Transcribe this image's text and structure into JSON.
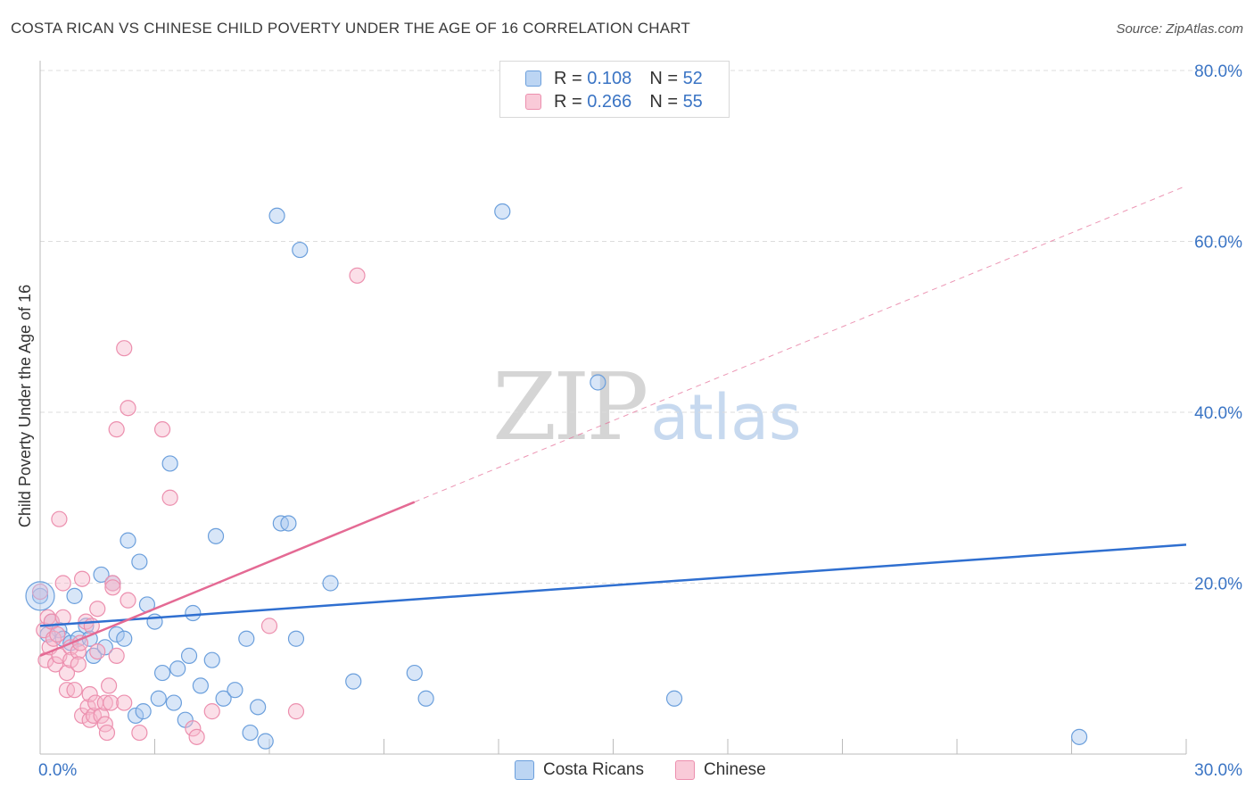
{
  "header": {
    "title": "COSTA RICAN VS CHINESE CHILD POVERTY UNDER THE AGE OF 16 CORRELATION CHART",
    "source": "Source: ZipAtlas.com"
  },
  "legend": {
    "rows": [
      {
        "r_label": "R =",
        "r_value": "0.108",
        "n_label": "N =",
        "n_value": "52"
      },
      {
        "r_label": "R =",
        "r_value": "0.266",
        "n_label": "N =",
        "n_value": "55"
      }
    ]
  },
  "bottom_legend": {
    "costa_ricans": "Costa Ricans",
    "chinese": "Chinese"
  },
  "watermark": {
    "zip": "ZIP",
    "atlas": "atlas"
  },
  "colors": {
    "blue_fill": "#a9c8ef",
    "blue_stroke": "#6b9fdc",
    "blue_line": "#2f6fd0",
    "pink_fill": "#f6b9cc",
    "pink_stroke": "#ec8fae",
    "pink_line": "#e46a94",
    "axis_label": "#3a74c4"
  },
  "chart_data": {
    "type": "scatter",
    "title": "COSTA RICAN VS CHINESE CHILD POVERTY UNDER THE AGE OF 16 CORRELATION CHART",
    "xlabel": "",
    "ylabel": "Child Poverty Under the Age of 16",
    "xlim": [
      0,
      30
    ],
    "ylim": [
      0,
      80
    ],
    "x_tick_labels": [
      "0.0%",
      "30.0%"
    ],
    "y_ticks": [
      20,
      40,
      60,
      80
    ],
    "y_tick_labels": [
      "20.0%",
      "40.0%",
      "60.0%",
      "80.0%"
    ],
    "grid": true,
    "series": [
      {
        "name": "Costa Ricans",
        "R": 0.108,
        "N": 52,
        "trend": {
          "x0": 0,
          "y0": 15.0,
          "x1": 30,
          "y1": 24.5
        },
        "points": [
          [
            0.0,
            18.5
          ],
          [
            0.3,
            15.5
          ],
          [
            0.5,
            14.5
          ],
          [
            0.6,
            13.5
          ],
          [
            0.8,
            13.0
          ],
          [
            0.9,
            18.5
          ],
          [
            1.0,
            13.5
          ],
          [
            1.2,
            15.0
          ],
          [
            1.4,
            11.5
          ],
          [
            1.6,
            21.0
          ],
          [
            1.7,
            12.5
          ],
          [
            1.9,
            20.0
          ],
          [
            2.0,
            14.0
          ],
          [
            2.2,
            13.5
          ],
          [
            2.3,
            25.0
          ],
          [
            2.5,
            4.5
          ],
          [
            2.6,
            22.5
          ],
          [
            2.7,
            5.0
          ],
          [
            2.8,
            17.5
          ],
          [
            3.0,
            15.5
          ],
          [
            3.1,
            6.5
          ],
          [
            3.2,
            9.5
          ],
          [
            3.4,
            34.0
          ],
          [
            3.5,
            6.0
          ],
          [
            3.6,
            10.0
          ],
          [
            3.8,
            4.0
          ],
          [
            3.9,
            11.5
          ],
          [
            4.0,
            16.5
          ],
          [
            4.2,
            8.0
          ],
          [
            4.5,
            11.0
          ],
          [
            4.6,
            25.5
          ],
          [
            4.8,
            6.5
          ],
          [
            5.1,
            7.5
          ],
          [
            5.4,
            13.5
          ],
          [
            5.5,
            2.5
          ],
          [
            5.7,
            5.5
          ],
          [
            5.9,
            1.5
          ],
          [
            6.2,
            63.0
          ],
          [
            6.3,
            27.0
          ],
          [
            6.5,
            27.0
          ],
          [
            6.7,
            13.5
          ],
          [
            6.8,
            59.0
          ],
          [
            7.6,
            20.0
          ],
          [
            8.2,
            8.5
          ],
          [
            9.8,
            9.5
          ],
          [
            10.1,
            6.5
          ],
          [
            12.1,
            63.5
          ],
          [
            14.6,
            43.5
          ],
          [
            16.6,
            6.5
          ],
          [
            27.2,
            2.0
          ],
          [
            0.2,
            14.0
          ],
          [
            1.3,
            13.5
          ]
        ]
      },
      {
        "name": "Chinese",
        "R": 0.266,
        "N": 55,
        "trend": {
          "x0": 0,
          "y0": 11.5,
          "x1": 9.8,
          "y1": 29.5
        },
        "trend_dashed": {
          "x0": 9.8,
          "y0": 29.5,
          "x1": 30,
          "y1": 66.5
        },
        "points": [
          [
            0.0,
            19.0
          ],
          [
            0.1,
            14.5
          ],
          [
            0.15,
            11.0
          ],
          [
            0.2,
            16.0
          ],
          [
            0.25,
            12.5
          ],
          [
            0.3,
            15.5
          ],
          [
            0.35,
            13.5
          ],
          [
            0.4,
            10.5
          ],
          [
            0.5,
            11.5
          ],
          [
            0.5,
            27.5
          ],
          [
            0.6,
            20.0
          ],
          [
            0.6,
            16.0
          ],
          [
            0.7,
            9.5
          ],
          [
            0.7,
            7.5
          ],
          [
            0.8,
            12.5
          ],
          [
            0.8,
            11.0
          ],
          [
            0.9,
            7.5
          ],
          [
            1.0,
            12.0
          ],
          [
            1.0,
            10.5
          ],
          [
            1.05,
            13.0
          ],
          [
            1.1,
            4.5
          ],
          [
            1.1,
            20.5
          ],
          [
            1.2,
            15.5
          ],
          [
            1.25,
            5.5
          ],
          [
            1.3,
            7.0
          ],
          [
            1.3,
            4.0
          ],
          [
            1.35,
            15.0
          ],
          [
            1.4,
            4.5
          ],
          [
            1.45,
            6.0
          ],
          [
            1.5,
            12.0
          ],
          [
            1.5,
            17.0
          ],
          [
            1.6,
            4.5
          ],
          [
            1.7,
            3.5
          ],
          [
            1.7,
            6.0
          ],
          [
            1.75,
            2.5
          ],
          [
            1.8,
            8.0
          ],
          [
            1.85,
            6.0
          ],
          [
            1.9,
            20.0
          ],
          [
            1.9,
            19.5
          ],
          [
            2.0,
            11.5
          ],
          [
            2.0,
            38.0
          ],
          [
            2.2,
            6.0
          ],
          [
            2.2,
            47.5
          ],
          [
            2.3,
            40.5
          ],
          [
            2.3,
            18.0
          ],
          [
            2.6,
            2.5
          ],
          [
            3.2,
            38.0
          ],
          [
            3.4,
            30.0
          ],
          [
            4.0,
            3.0
          ],
          [
            4.1,
            2.0
          ],
          [
            4.5,
            5.0
          ],
          [
            6.0,
            15.0
          ],
          [
            6.7,
            5.0
          ],
          [
            8.3,
            56.0
          ],
          [
            0.45,
            14.0
          ]
        ]
      }
    ]
  }
}
